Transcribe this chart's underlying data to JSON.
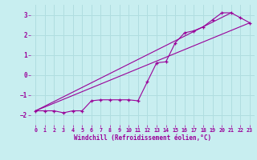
{
  "xlabel": "Windchill (Refroidissement éolien,°C)",
  "background_color": "#c8eef0",
  "line_color": "#990099",
  "grid_color": "#b0dde0",
  "xlim": [
    -0.5,
    23.5
  ],
  "ylim": [
    -2.5,
    3.5
  ],
  "xticks": [
    0,
    1,
    2,
    3,
    4,
    5,
    6,
    7,
    8,
    9,
    10,
    11,
    12,
    13,
    14,
    15,
    16,
    17,
    18,
    19,
    20,
    21,
    22,
    23
  ],
  "yticks": [
    -2,
    -1,
    0,
    1,
    2,
    3
  ],
  "line1_x": [
    0,
    1,
    2,
    3,
    4,
    5,
    6,
    7,
    8,
    9,
    10,
    11,
    12,
    13,
    14,
    15,
    16,
    17,
    18,
    19,
    20,
    21,
    22,
    23
  ],
  "line1_y": [
    -1.8,
    -1.8,
    -1.8,
    -1.9,
    -1.8,
    -1.8,
    -1.3,
    -1.25,
    -1.25,
    -1.25,
    -1.25,
    -1.3,
    -0.35,
    0.6,
    0.65,
    1.6,
    2.1,
    2.2,
    2.4,
    2.75,
    3.1,
    3.1,
    2.85,
    2.6
  ],
  "line2_x": [
    0,
    23
  ],
  "line2_y": [
    -1.8,
    2.6
  ],
  "line3_x": [
    0,
    21
  ],
  "line3_y": [
    -1.8,
    3.1
  ]
}
